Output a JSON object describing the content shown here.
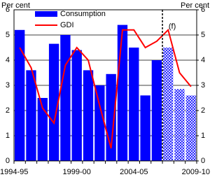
{
  "chart_data": {
    "type": "bar",
    "categories": [
      "1994-95",
      null,
      null,
      null,
      null,
      "1999-00",
      null,
      null,
      null,
      null,
      "2004-05",
      null,
      null,
      null,
      null,
      "2009-10"
    ],
    "series": [
      {
        "name": "Consumption",
        "type": "bar",
        "color": "#0000ff",
        "values": [
          5.2,
          3.6,
          2.5,
          4.65,
          5.0,
          4.4,
          3.6,
          3.0,
          3.45,
          5.4,
          4.5,
          2.6,
          4.0,
          4.5,
          2.85,
          2.6
        ],
        "hatched": [
          false,
          false,
          false,
          false,
          false,
          false,
          false,
          false,
          false,
          false,
          false,
          false,
          false,
          true,
          true,
          true
        ]
      },
      {
        "name": "GDI",
        "type": "line",
        "color": "#ff0000",
        "values": [
          4.5,
          3.7,
          2.1,
          1.5,
          3.8,
          4.5,
          4.0,
          2.2,
          0.5,
          5.2,
          5.2,
          4.5,
          4.75,
          5.2,
          3.5,
          2.95
        ]
      }
    ],
    "annotation": "(f)",
    "ylabel": "Per cent",
    "y2label": "Per cent",
    "ylim": [
      0,
      6
    ],
    "yticks": [
      0,
      1,
      2,
      3,
      4,
      5,
      6
    ],
    "y2lim": [
      0,
      6
    ],
    "y2ticks": [
      0,
      1,
      2,
      3,
      4,
      5,
      6
    ],
    "grid": true,
    "legend": "upper-left"
  }
}
